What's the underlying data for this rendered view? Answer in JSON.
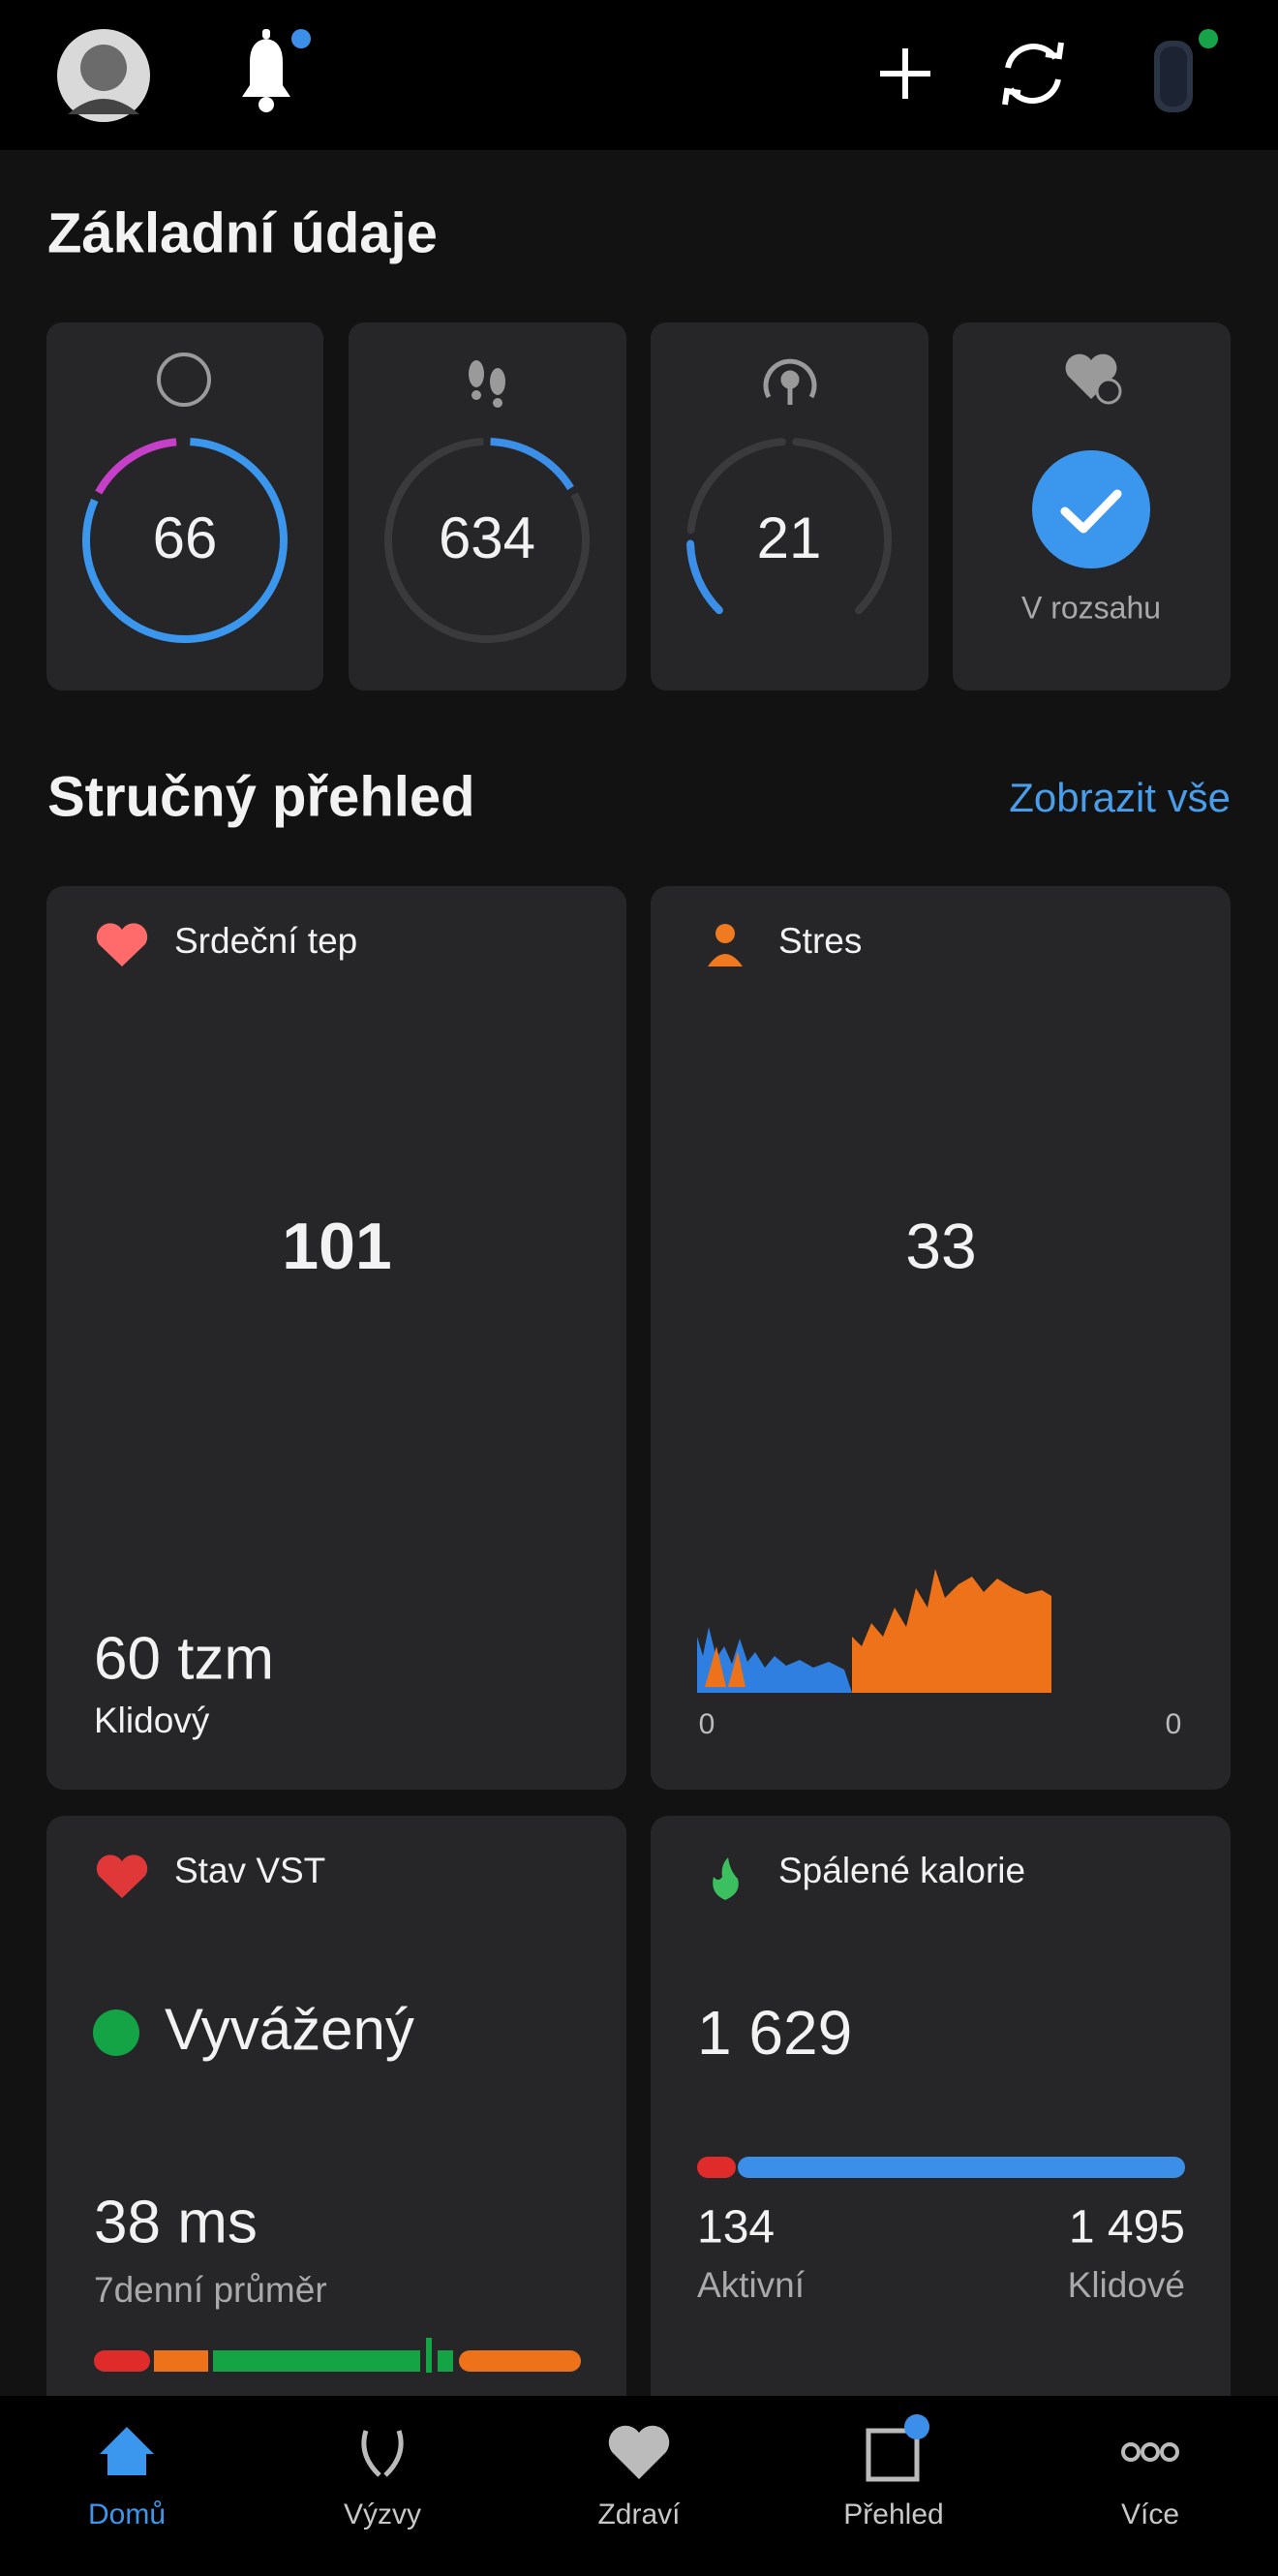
{
  "basics": {
    "title": "Základní údaje",
    "stats": [
      "66",
      "634",
      "21",
      "V rozsahu"
    ]
  },
  "overview": {
    "title": "Stručný přehled",
    "link": "Zobrazit vše",
    "heart_rate": {
      "title": "Srdeční tep",
      "value": "101",
      "resting": "60 tzm",
      "resting_label": "Klidový"
    },
    "stress": {
      "title": "Stres",
      "value": "33",
      "axis_start": "0",
      "axis_end": "0"
    },
    "hrv": {
      "title": "Stav VST",
      "status": "Vyvážený",
      "value": "38 ms",
      "value_label": "7denní průměr"
    },
    "calories": {
      "title": "Spálené kalorie",
      "total": "1 629",
      "active": "134",
      "active_label": "Aktivní",
      "resting": "1 495",
      "resting_label": "Klidové"
    }
  },
  "nav": [
    "Domů",
    "Výzvy",
    "Zdraví",
    "Přehled",
    "Více"
  ]
}
